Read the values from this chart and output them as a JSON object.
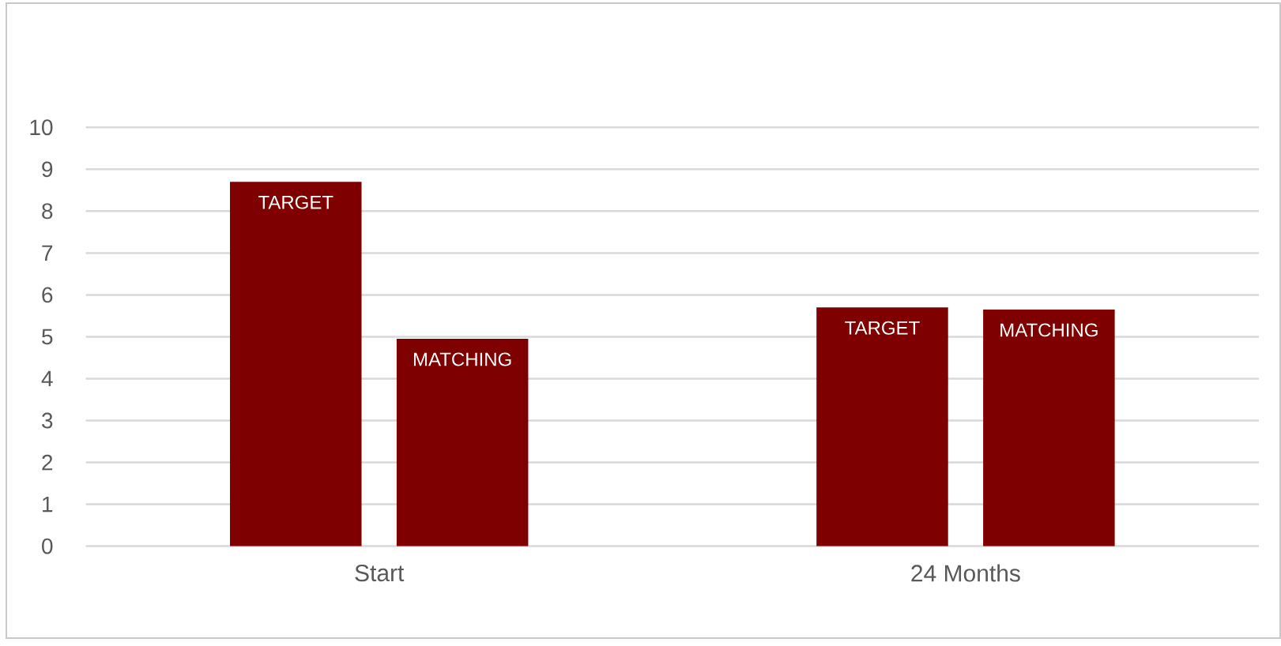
{
  "chart_data": {
    "type": "bar",
    "categories": [
      "Start",
      "24 Months"
    ],
    "series": [
      {
        "name": "TARGET",
        "color": "#7f0000",
        "values": [
          8.7,
          5.7
        ]
      },
      {
        "name": "MATCHING",
        "color": "#7f0000",
        "values": [
          4.95,
          5.65
        ]
      }
    ],
    "ylim": [
      0,
      10
    ],
    "yticks": [
      0,
      1,
      2,
      3,
      4,
      5,
      6,
      7,
      8,
      9,
      10
    ],
    "grid": "y"
  }
}
